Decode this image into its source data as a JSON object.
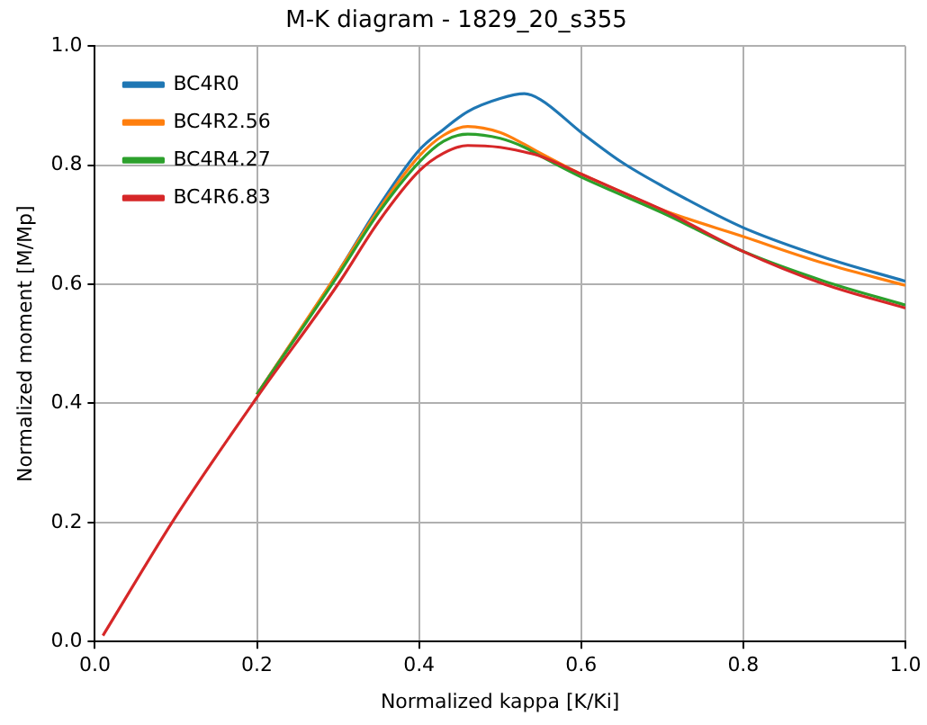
{
  "chart_data": {
    "type": "line",
    "title": "M-K diagram - 1829_20_s355",
    "xlabel": "Normalized kappa [K/Ki]",
    "ylabel": "Normalized moment [M/Mp]",
    "x": [
      0.01,
      0.1,
      0.2,
      0.3,
      0.35,
      0.4,
      0.43,
      0.46,
      0.5,
      0.53,
      0.55,
      0.6,
      0.65,
      0.7,
      0.8,
      0.9,
      1.0
    ],
    "series": [
      {
        "name": "BC4R0",
        "color": "#1f77b4",
        "values": [
          null,
          null,
          0.415,
          0.62,
          0.73,
          0.825,
          0.86,
          0.89,
          0.912,
          0.92,
          0.91,
          0.855,
          0.805,
          0.765,
          0.695,
          0.645,
          0.605
        ]
      },
      {
        "name": "BC4R2.56",
        "color": "#ff7f0e",
        "values": [
          null,
          null,
          0.415,
          0.62,
          0.725,
          0.815,
          0.85,
          0.865,
          0.855,
          0.835,
          0.82,
          0.785,
          0.755,
          0.725,
          0.68,
          0.635,
          0.598
        ]
      },
      {
        "name": "BC4R4.27",
        "color": "#2ca02c",
        "values": [
          null,
          null,
          0.415,
          0.615,
          0.72,
          0.805,
          0.84,
          0.852,
          0.845,
          0.83,
          0.815,
          0.78,
          0.75,
          0.72,
          0.655,
          0.605,
          0.565
        ]
      },
      {
        "name": "BC4R6.83",
        "color": "#d62728",
        "values": [
          0.01,
          0.21,
          0.41,
          0.6,
          0.705,
          0.79,
          0.82,
          0.833,
          0.83,
          0.822,
          0.815,
          0.785,
          0.755,
          0.725,
          0.655,
          0.6,
          0.56
        ]
      }
    ],
    "xlim": [
      0,
      1
    ],
    "xticks": [
      {
        "value": 0,
        "label": "0.0"
      },
      0.2,
      0.4,
      0.6,
      0.8,
      {
        "value": 1,
        "label": "1.0"
      }
    ],
    "ylim": [
      0,
      1
    ],
    "yticks": [
      {
        "value": 0,
        "label": "0.0"
      },
      0.2,
      0.4,
      0.6,
      0.8,
      {
        "value": 1,
        "label": "1.0"
      }
    ],
    "grid": true,
    "legend": "top left"
  }
}
